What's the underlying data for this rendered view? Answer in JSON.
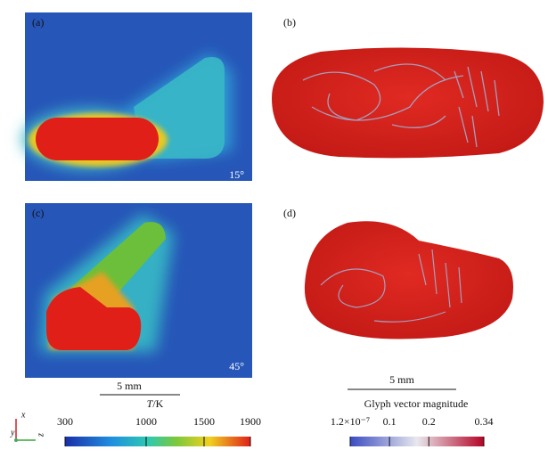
{
  "panels": [
    {
      "label": "(a)",
      "angle": "15°"
    },
    {
      "label": "(b)"
    },
    {
      "label": "(c)",
      "angle": "45°"
    },
    {
      "label": "(d)"
    }
  ],
  "scale_bars": [
    "5 mm",
    "5 mm"
  ],
  "axes_triad": {
    "x": "x",
    "y": "y",
    "z": "z"
  },
  "temperature_colorbar": {
    "title_symbol": "T",
    "title_unit": "/K",
    "ticks": [
      300,
      1000,
      1500,
      1900
    ]
  },
  "glyph_colorbar": {
    "title": "Glyph vector magnitude",
    "ticks": [
      {
        "value": 1.2e-07,
        "label": "1.2×10⁻⁷"
      },
      0.1,
      0.2,
      0.34
    ]
  }
}
